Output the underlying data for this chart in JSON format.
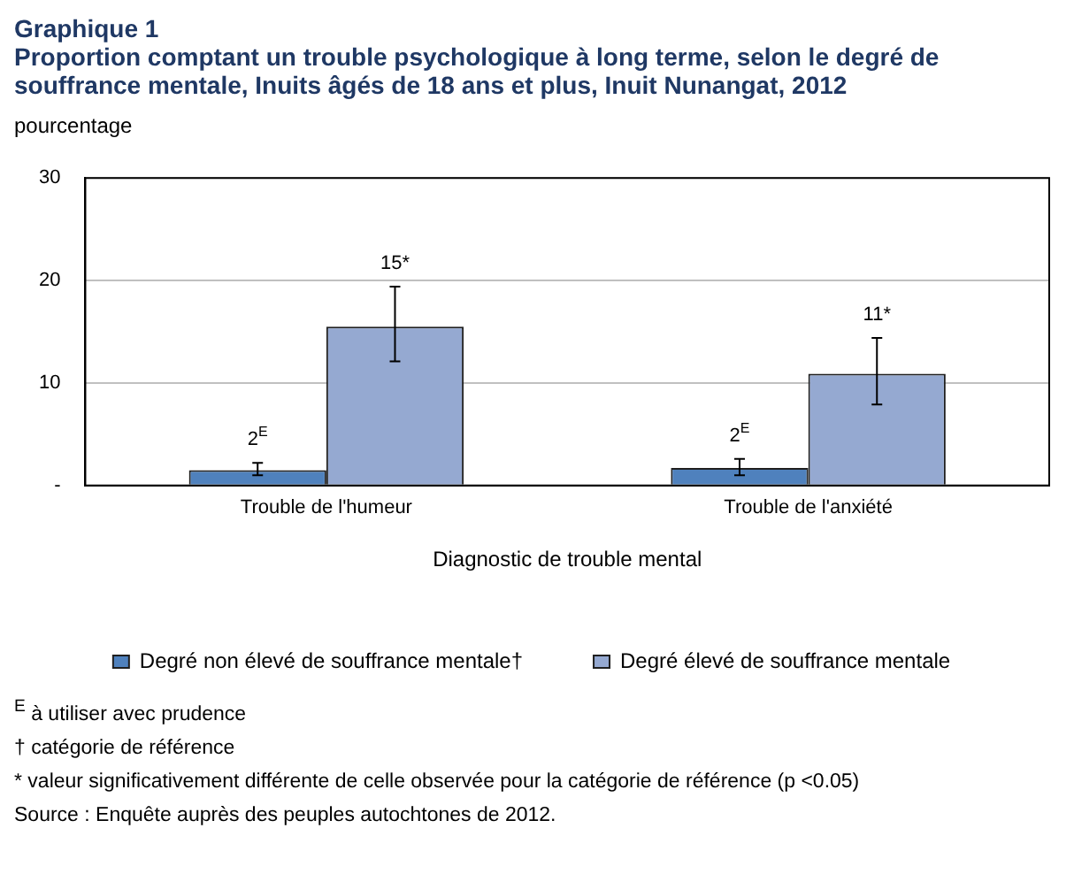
{
  "chart_data": {
    "type": "bar",
    "title": "Graphique 1",
    "subtitle": "Proportion comptant un trouble psychologique à long terme, selon le degré de souffrance mentale, Inuits âgés de 18 ans et plus, Inuit Nunangat, 2012",
    "ylabel": "pourcentage",
    "xlabel": "Diagnostic de trouble mental",
    "categories": [
      "Trouble de l'humeur",
      "Trouble de l'anxiété"
    ],
    "series": [
      {
        "name": "Degré non élevé de souffrance mentale†",
        "color": "#4f81bd",
        "values": [
          1.5,
          1.7
        ],
        "errors": [
          [
            1.0,
            2.2
          ],
          [
            1.0,
            2.6
          ]
        ],
        "value_labels": [
          "2$^{E}$",
          "2$^{E}$"
        ]
      },
      {
        "name": "Degré élevé de souffrance mentale",
        "color": "#95a9d1",
        "values": [
          15.5,
          10.9
        ],
        "errors": [
          [
            12.1,
            19.4
          ],
          [
            7.9,
            14.4
          ]
        ],
        "value_labels": [
          "15*",
          "11*"
        ]
      }
    ],
    "ylim": [
      0,
      30
    ],
    "yticks": [
      {
        "value": 0,
        "label": "-"
      },
      10,
      20,
      30
    ],
    "grid": "y",
    "legend": "bottom",
    "annotations": [
      "$^{E}$ à utiliser avec prudence",
      "† catégorie de référence",
      "* valeur significativement différente de celle observée pour la catégorie de référence  (p <0.05)",
      "Source : Enquête auprès des peuples autochtones de 2012."
    ]
  }
}
